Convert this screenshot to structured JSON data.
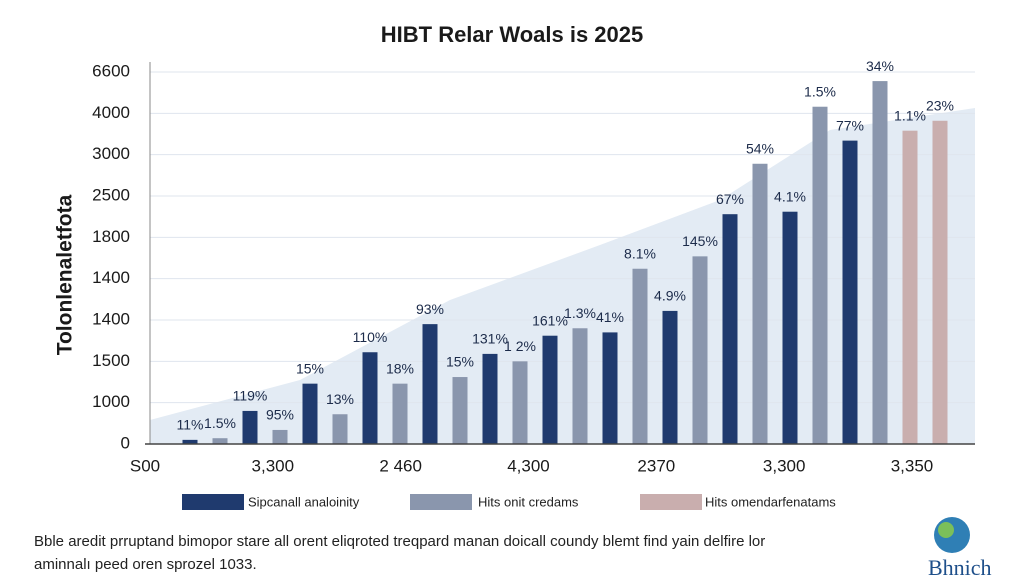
{
  "chart_data": {
    "type": "bar",
    "title": "HIBT Relar Woals is 2025",
    "y_label": "Tolonlenaletfota",
    "ylim": [
      0,
      4500
    ],
    "yticks": [
      0,
      {
        "value": 500,
        "label": "1000"
      },
      {
        "value": 1000,
        "label": "1500"
      },
      {
        "value": 1500,
        "label": "1400"
      },
      {
        "value": 2000,
        "label": "1400"
      },
      {
        "value": 2500,
        "label": "1800"
      },
      {
        "value": 3000,
        "label": "2500"
      },
      {
        "value": 3500,
        "label": "3000"
      },
      4000,
      {
        "value": 4500,
        "label": "6600"
      }
    ],
    "grid": true,
    "x_labels": [
      "S00",
      "3,300",
      "2 460",
      "4,300",
      "2370",
      "3,300",
      "3,350"
    ],
    "series": [
      {
        "name": "Sipcanall analoinity",
        "color": "#1f3a6e",
        "values": [
          50,
          null,
          400,
          null,
          730,
          null,
          1110,
          null,
          1450,
          null,
          1090,
          null,
          1310,
          null,
          1350,
          null,
          1610,
          null,
          2780,
          null,
          2810,
          null,
          3670,
          null,
          null,
          null
        ]
      },
      {
        "name": "Hits onit credams",
        "color": "#8a96ad",
        "values": [
          null,
          70,
          null,
          170,
          null,
          360,
          null,
          730,
          null,
          810,
          null,
          1000,
          null,
          1400,
          null,
          2120,
          null,
          2270,
          null,
          3390,
          null,
          4080,
          null,
          4390,
          null,
          null
        ]
      },
      {
        "name": "Hits omendarfenatams",
        "color": "#c9aeae",
        "values": [
          null,
          null,
          null,
          null,
          null,
          null,
          null,
          null,
          null,
          null,
          null,
          null,
          null,
          null,
          null,
          null,
          null,
          null,
          null,
          null,
          null,
          null,
          null,
          null,
          3790,
          3910
        ]
      }
    ],
    "bar_annotations": [
      "11%",
      "1.5%",
      "119%",
      "95%",
      "15%",
      "13%",
      "110%",
      "18%",
      "93%",
      "15%",
      "131%",
      "1 2%",
      "161%",
      "1.3%",
      "41%",
      "8.1%",
      "4.9%",
      "145%",
      "67%",
      "54%",
      "4.1%",
      "1.5%",
      "77%",
      "34%",
      "1.1%",
      "23%"
    ],
    "footer": [
      "Bble aredit prruptand bimopor stare all orent eliqroted treqpard manan doicall coundy blemt find yain delfire lor",
      "aminnalı peed oren sprozel 1033."
    ],
    "logo": "Bhnich"
  }
}
